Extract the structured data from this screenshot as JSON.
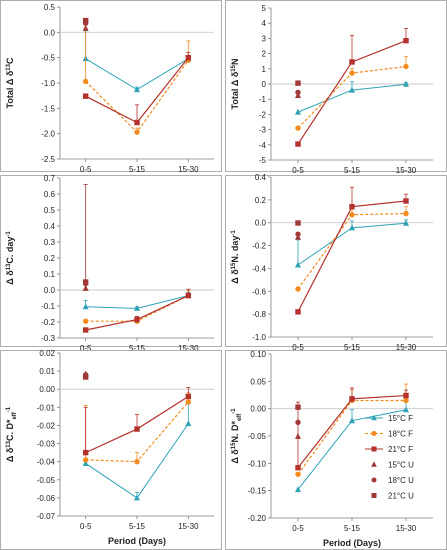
{
  "colors": {
    "15F": "#2ea3b8",
    "18F": "#f28a1e",
    "21F": "#b5312c",
    "15U": "#a13a36",
    "18U": "#a13a36",
    "21U": "#a13a36",
    "axis": "#7f7f7f",
    "zero": "#c8c8c8",
    "frame": "#9a9a9a",
    "text": "#222222"
  },
  "legend": {
    "items": [
      {
        "key": "15F",
        "label": "15°C F",
        "marker": "triangle"
      },
      {
        "key": "18F",
        "label": "18°C F",
        "marker": "circle"
      },
      {
        "key": "21F",
        "label": "21°C F",
        "marker": "square"
      },
      {
        "key": "15U",
        "label": "15°C U",
        "marker": "triangle"
      },
      {
        "key": "18U",
        "label": "18°C U",
        "marker": "circle"
      },
      {
        "key": "21U",
        "label": "21°C U",
        "marker": "square"
      }
    ]
  },
  "chart_data": [
    {
      "type": "line",
      "panel": "a",
      "ylabel_parts": [
        "Total ",
        "Δ",
        " δ",
        "13",
        "C"
      ],
      "ylim": [
        -2.5,
        0.5
      ],
      "yticks": [
        "0.5",
        "0.0",
        "-0.5",
        "-1.0",
        "-1.5",
        "-2.0",
        "-2.5"
      ],
      "categories": [
        "0-5",
        "5-15",
        "15-30"
      ],
      "xlabel": "",
      "series": [
        {
          "key": "15F",
          "values": [
            -0.52,
            -1.13,
            -0.52
          ],
          "err": [
            0.55,
            0.05,
            0.05
          ]
        },
        {
          "key": "18F",
          "values": [
            -0.97,
            -1.97,
            -0.55
          ],
          "err": [
            1.05,
            0.08,
            0.38
          ]
        },
        {
          "key": "21F",
          "values": [
            -1.26,
            -1.78,
            -0.5
          ],
          "err": [
            0,
            0.35,
            0.1
          ]
        }
      ],
      "points_u": [
        {
          "key": "15U",
          "value": 0.14
        },
        {
          "key": "18U",
          "value": 0.18
        },
        {
          "key": "21U",
          "value": 0.17
        }
      ]
    },
    {
      "type": "line",
      "panel": "b",
      "ylabel_parts": [
        "Total ",
        "Δ",
        " δ",
        "15",
        "N"
      ],
      "ylim": [
        -5,
        5
      ],
      "yticks": [
        "5",
        "4",
        "3",
        "2",
        "1",
        "0",
        "-1",
        "-2",
        "-3",
        "-4",
        "-5"
      ],
      "categories": [
        "0-5",
        "5-15",
        "15-30"
      ],
      "xlabel": "",
      "series": [
        {
          "key": "15F",
          "values": [
            -1.85,
            -0.4,
            -0.02
          ],
          "err": [
            0,
            0.55,
            0.1
          ]
        },
        {
          "key": "18F",
          "values": [
            -2.9,
            0.72,
            1.15
          ],
          "err": [
            0,
            0.3,
            0.65
          ]
        },
        {
          "key": "21F",
          "values": [
            -3.95,
            1.45,
            2.85
          ],
          "err": [
            0,
            1.75,
            0.8
          ]
        }
      ],
      "points_u": [
        {
          "key": "15U",
          "value": -0.55
        },
        {
          "key": "18U",
          "value": -0.55
        },
        {
          "key": "21U",
          "value": -0.15
        }
      ]
    },
    {
      "type": "line",
      "panel": "c",
      "ylabel_parts": [
        "Δ",
        " δ",
        "13",
        "C",
        ". day",
        "-1",
        ""
      ],
      "ylim": [
        -0.3,
        0.7
      ],
      "yticks": [
        "0.7",
        "0.6",
        "0.5",
        "0.4",
        "0.3",
        "0.2",
        "0.1",
        "0.0",
        "-0.1",
        "-0.2",
        "-0.3"
      ],
      "categories": [
        "0-5",
        "5-15",
        "15-30"
      ],
      "xlabel": "",
      "series": [
        {
          "key": "15F",
          "values": [
            -0.105,
            -0.115,
            -0.035
          ],
          "err": [
            0.04,
            0.01,
            0.02
          ]
        },
        {
          "key": "18F",
          "values": [
            -0.195,
            -0.195,
            -0.035
          ],
          "err": [
            0,
            0.02,
            0.03
          ]
        },
        {
          "key": "21F",
          "values": [
            -0.25,
            -0.185,
            -0.035
          ],
          "err": [
            0,
            0.02,
            0.04
          ]
        }
      ],
      "points_u": [
        {
          "key": "15U",
          "value": 0.03
        },
        {
          "key": "18U",
          "value": 0.04
        },
        {
          "key": "21U",
          "value": 0.03,
          "err": 0.63
        }
      ]
    },
    {
      "type": "line",
      "panel": "d",
      "ylabel_parts": [
        "Δ",
        " δ",
        "15",
        "N. day",
        "-1",
        "",
        ""
      ],
      "ylim": [
        -1.0,
        0.4
      ],
      "yticks": [
        "0.4",
        "0.2",
        "0.0",
        "-0.2",
        "-0.4",
        "-0.6",
        "-0.8",
        "-1.0"
      ],
      "categories": [
        "0-5",
        "5-15",
        "15-30"
      ],
      "xlabel": "",
      "series": [
        {
          "key": "15F",
          "values": [
            -0.37,
            -0.045,
            -0.005
          ],
          "err": [
            0.22,
            0.06,
            0.03
          ]
        },
        {
          "key": "18F",
          "values": [
            -0.58,
            0.07,
            0.08
          ],
          "err": [
            0,
            0.09,
            0.06
          ]
        },
        {
          "key": "21F",
          "values": [
            -0.78,
            0.14,
            0.19
          ],
          "err": [
            0,
            0.17,
            0.06
          ]
        }
      ],
      "points_u": [
        {
          "key": "15U",
          "value": -0.1
        },
        {
          "key": "18U",
          "value": -0.1
        },
        {
          "key": "21U",
          "value": -0.03
        }
      ]
    },
    {
      "type": "line",
      "panel": "e",
      "ylabel_parts": [
        "Δ",
        " δ",
        "13",
        "C. D*",
        "eff",
        "-1",
        ""
      ],
      "ylim": [
        -0.07,
        0.02
      ],
      "yticks": [
        "0.02",
        "0.01",
        "0.00",
        "-0.01",
        "-0.02",
        "-0.03",
        "-0.04",
        "-0.05",
        "-0.06",
        "-0.07"
      ],
      "categories": [
        "0-5",
        "5-15",
        "15-30"
      ],
      "xlabel": "Period (Days)",
      "series": [
        {
          "key": "15F",
          "values": [
            -0.041,
            -0.06,
            -0.019
          ],
          "err": [
            0,
            0.003,
            0.011
          ]
        },
        {
          "key": "18F",
          "values": [
            -0.039,
            -0.04,
            -0.007
          ],
          "err": [
            0.03,
            0.005,
            0.005
          ]
        },
        {
          "key": "21F",
          "values": [
            -0.035,
            -0.022,
            -0.004
          ],
          "err": [
            0.025,
            0.008,
            0.005
          ]
        }
      ],
      "points_u": [
        {
          "key": "15U",
          "value": 0.01
        },
        {
          "key": "18U",
          "value": 0.008
        },
        {
          "key": "21U",
          "value": 0.005
        }
      ]
    },
    {
      "type": "line",
      "panel": "f",
      "ylabel_parts": [
        "Δ",
        " δ",
        "15",
        "N. D*",
        "eff",
        "-1",
        ""
      ],
      "ylim": [
        -0.2,
        0.1
      ],
      "yticks": [
        "0.10",
        "0.05",
        "0.00",
        "-0.05",
        "-0.10",
        "-0.15",
        "-0.20"
      ],
      "categories": [
        "0-5",
        "5-15",
        "15-30"
      ],
      "xlabel": "Period (Days)",
      "series": [
        {
          "key": "15F",
          "values": [
            -0.148,
            -0.022,
            -0.002
          ],
          "err": [
            0,
            0.02,
            0.015
          ]
        },
        {
          "key": "18F",
          "values": [
            -0.12,
            0.015,
            0.015
          ],
          "err": [
            0,
            0.02,
            0.03
          ]
        },
        {
          "key": "21F",
          "values": [
            -0.108,
            0.018,
            0.024
          ],
          "err": [
            0.12,
            0.02,
            0.01
          ]
        }
      ],
      "points_u": [
        {
          "key": "15U",
          "value": -0.045
        },
        {
          "key": "18U",
          "value": -0.025
        },
        {
          "key": "21U",
          "value": -0.003
        }
      ]
    }
  ]
}
